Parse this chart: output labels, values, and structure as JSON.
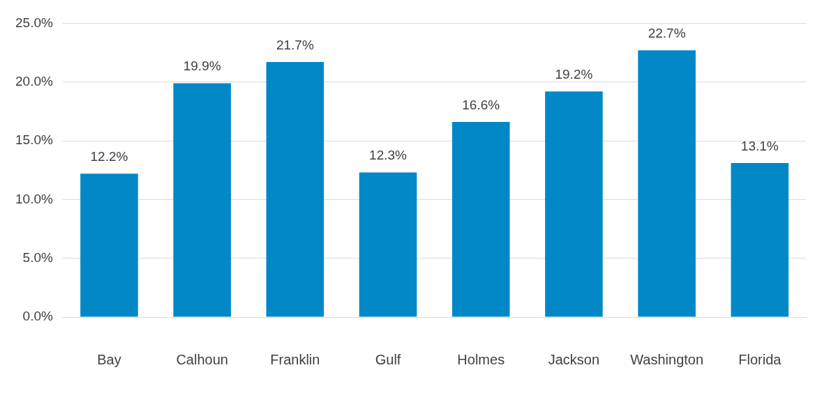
{
  "chart_data": {
    "type": "bar",
    "categories": [
      "Bay",
      "Calhoun",
      "Franklin",
      "Gulf",
      "Holmes",
      "Jackson",
      "Washington",
      "Florida"
    ],
    "values": [
      12.2,
      19.9,
      21.7,
      12.3,
      16.6,
      19.2,
      22.7,
      13.1
    ],
    "color": "#0288c7",
    "value_labels": [
      "12.2%",
      "19.9%",
      "21.7%",
      "12.3%",
      "16.6%",
      "19.2%",
      "22.7%",
      "13.1%"
    ],
    "ylim": [
      0,
      25
    ],
    "yticks": [
      {
        "value": 0,
        "label": "0.0%"
      },
      {
        "value": 5,
        "label": "5.0%"
      },
      {
        "value": 10,
        "label": "10.0%"
      },
      {
        "value": 15,
        "label": "15.0%"
      },
      {
        "value": 20,
        "label": "20.0%"
      },
      {
        "value": 25,
        "label": "25.0%"
      }
    ],
    "grid": "y",
    "legend": false
  }
}
